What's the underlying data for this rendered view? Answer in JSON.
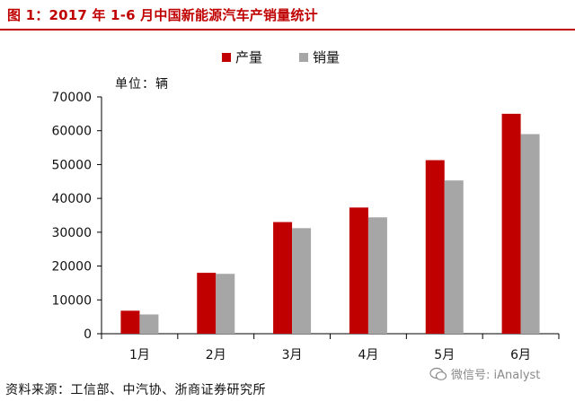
{
  "title": "图 1：2017 年 1-6 月中国新能源汽车产销量统计",
  "source": "资料来源：工信部、中汽协、浙商证券研究所",
  "watermark": "微信号: iAnalyst",
  "colors": {
    "production": "#c00000",
    "sales": "#a6a6a6",
    "title": "#c00000"
  },
  "chart_data": {
    "type": "bar",
    "unit_label": "单位：辆",
    "categories": [
      "1月",
      "2月",
      "3月",
      "4月",
      "5月",
      "6月"
    ],
    "series": [
      {
        "name": "产量",
        "values": [
          6800,
          18000,
          33000,
          37300,
          51300,
          65000
        ]
      },
      {
        "name": "销量",
        "values": [
          5700,
          17700,
          31200,
          34400,
          45300,
          59000
        ]
      }
    ],
    "yticks": [
      0,
      10000,
      20000,
      30000,
      40000,
      50000,
      60000,
      70000
    ],
    "ylim": [
      0,
      70000
    ],
    "legend_position": "top-center",
    "grid": false
  }
}
